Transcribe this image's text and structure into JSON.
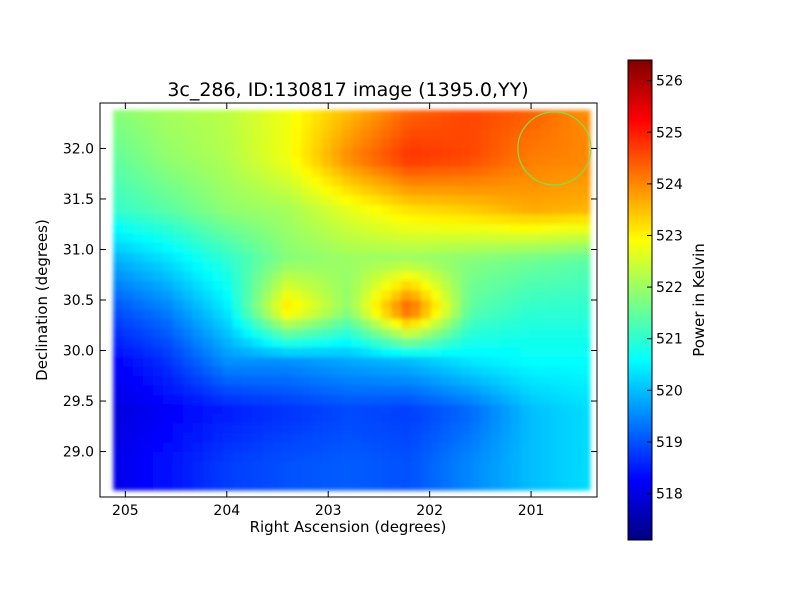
{
  "chart_data": {
    "type": "heatmap",
    "title": "3c_286, ID:130817 image (1395.0,YY)",
    "xlabel": "Right Ascension (degrees)",
    "ylabel": "Declination (degrees)",
    "xlim": [
      205.25,
      200.35
    ],
    "ylim": [
      28.55,
      32.45
    ],
    "x_ticks": [
      205,
      204,
      203,
      202,
      201
    ],
    "x_tick_labels": [
      "205",
      "204",
      "203",
      "202",
      "201"
    ],
    "y_ticks": [
      29.0,
      29.5,
      30.0,
      30.5,
      31.0,
      31.5,
      32.0
    ],
    "y_tick_labels": [
      "29.0",
      "29.5",
      "30.0",
      "30.5",
      "31.0",
      "31.5",
      "32.0"
    ],
    "colorbar": {
      "label": "Power in Kelvin",
      "range": [
        517.1,
        526.4
      ],
      "ticks": [
        518,
        519,
        520,
        521,
        522,
        523,
        524,
        525,
        526
      ],
      "tick_labels": [
        "518",
        "519",
        "520",
        "521",
        "522",
        "523",
        "524",
        "525",
        "526"
      ],
      "colormap": "jet"
    },
    "marker": {
      "shape": "circle",
      "ra": 200.77,
      "dec": 32.0,
      "radius_deg": 0.36,
      "color": "#7ee04a"
    },
    "z_grid": {
      "ra": [
        205.2,
        204.6,
        204.0,
        203.4,
        202.8,
        202.2,
        201.6,
        201.0,
        200.4
      ],
      "dec": [
        32.4,
        31.9,
        31.4,
        30.9,
        30.4,
        29.9,
        29.4,
        28.9
      ],
      "values": [
        [
          521.8,
          522.1,
          522.3,
          522.8,
          523.5,
          524.3,
          524.6,
          524.4,
          523.9
        ],
        [
          521.4,
          521.9,
          522.2,
          522.8,
          524.0,
          524.8,
          524.6,
          524.1,
          524.0
        ],
        [
          521.0,
          521.4,
          521.9,
          522.1,
          522.7,
          523.2,
          523.4,
          523.7,
          523.6
        ],
        [
          519.8,
          520.3,
          521.0,
          521.8,
          522.0,
          522.0,
          521.8,
          521.6,
          521.4
        ],
        [
          518.9,
          519.4,
          520.4,
          523.2,
          521.9,
          524.6,
          521.4,
          521.0,
          521.0
        ],
        [
          518.2,
          518.7,
          519.6,
          519.6,
          519.8,
          520.0,
          520.4,
          520.6,
          520.6
        ],
        [
          517.9,
          518.2,
          518.5,
          518.7,
          518.9,
          518.8,
          519.2,
          520.0,
          520.3
        ],
        [
          518.0,
          518.4,
          518.8,
          519.0,
          519.1,
          519.0,
          519.5,
          520.0,
          520.3
        ]
      ]
    }
  }
}
